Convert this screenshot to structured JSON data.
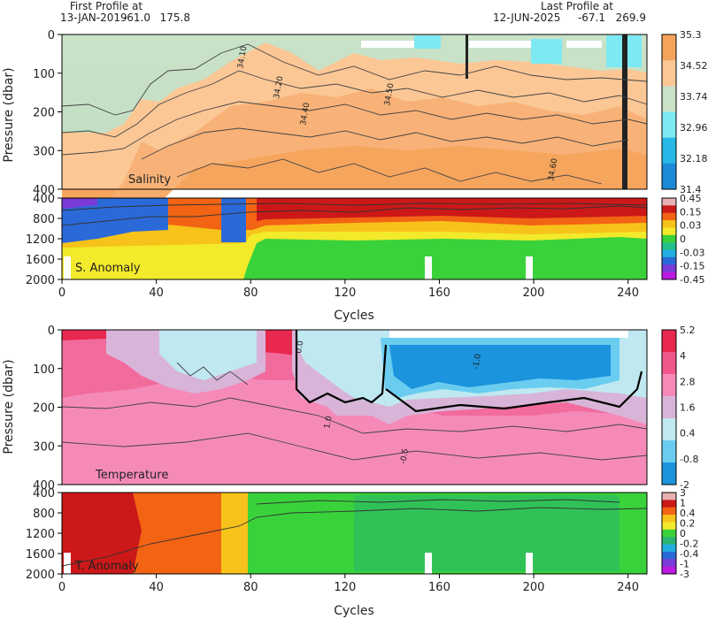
{
  "header": {
    "first_label": "First Profile at",
    "first_date": "13-JAN-2019",
    "first_lat": "-61.0",
    "first_lon": "175.8",
    "last_label": "Last Profile at",
    "last_date": "12-JUN-2025",
    "last_lat": "-67.1",
    "last_lon": "269.9"
  },
  "chart_data": [
    {
      "type": "heatmap",
      "id": "salinity",
      "panel_label": "Salinity",
      "ylabel": "Pressure (dbar)",
      "xlim": [
        0,
        248
      ],
      "ylim": [
        400,
        0
      ],
      "x_ticks": [
        "0",
        "40",
        "80",
        "120",
        "160",
        "200",
        "240"
      ],
      "y_ticks": [
        "0",
        "100",
        "200",
        "300",
        "400"
      ],
      "colorbar_labels": [
        "35.3",
        "34.52",
        "33.74",
        "32.96",
        "32.18",
        "31.4"
      ],
      "colors": [
        "#f5a35a",
        "#fbc795",
        "#c9e2c8",
        "#7de9f2",
        "#26b8e6",
        "#1c8ad8"
      ],
      "contour_labels": [
        "34.10",
        "34.50",
        "34.60",
        "34.40",
        "34.20"
      ]
    },
    {
      "type": "heatmap",
      "id": "s_anomaly",
      "panel_label": "S. Anomaly",
      "xlim": [
        0,
        248
      ],
      "ylim": [
        2000,
        400
      ],
      "y_ticks": [
        "400",
        "800",
        "1200",
        "1600",
        "2000"
      ],
      "colorbar_labels": [
        "0.45",
        "0.15",
        "0.03",
        "0",
        "-0.03",
        "-0.15",
        "-0.45"
      ],
      "colors": [
        "#e8b0b0",
        "#cc1818",
        "#f26414",
        "#f7c31a",
        "#f2ea2a",
        "#3ad23a",
        "#24c08a",
        "#21aee0",
        "#2a6ad8",
        "#7a3ad8",
        "#bb1ae0"
      ],
      "xlabel": "Cycles"
    },
    {
      "type": "heatmap",
      "id": "temperature",
      "panel_label": "Temperature",
      "ylabel": "Pressure (dbar)",
      "xlim": [
        0,
        248
      ],
      "ylim": [
        400,
        0
      ],
      "y_ticks": [
        "0",
        "100",
        "200",
        "300",
        "400"
      ],
      "colorbar_labels": [
        "5.2",
        "4",
        "2.8",
        "1.6",
        "0.4",
        "-0.8",
        "-2"
      ],
      "colors": [
        "#e8284e",
        "#f0568a",
        "#f58ab8",
        "#d8b4d8",
        "#bfe8f0",
        "#6acdf0",
        "#1b93dd"
      ],
      "contour_labels": [
        "0.0",
        "1.0",
        "-1.0",
        "-0.5"
      ]
    },
    {
      "type": "heatmap",
      "id": "t_anomaly",
      "panel_label": "T. Anomaly",
      "xlim": [
        0,
        248
      ],
      "ylim": [
        2000,
        400
      ],
      "y_ticks": [
        "400",
        "800",
        "1200",
        "1600",
        "2000"
      ],
      "colorbar_labels": [
        "3",
        "1",
        "0.4",
        "0.2",
        "0",
        "-0.2",
        "-0.4",
        "-1",
        "-3"
      ],
      "colors": [
        "#e8b0b0",
        "#cc1818",
        "#f26414",
        "#f7c31a",
        "#f2ea2a",
        "#3ad23a",
        "#2ab470",
        "#21aee0",
        "#2a6ad8",
        "#7a3ad8",
        "#bb1ae0"
      ],
      "xlabel": "Cycles"
    }
  ]
}
